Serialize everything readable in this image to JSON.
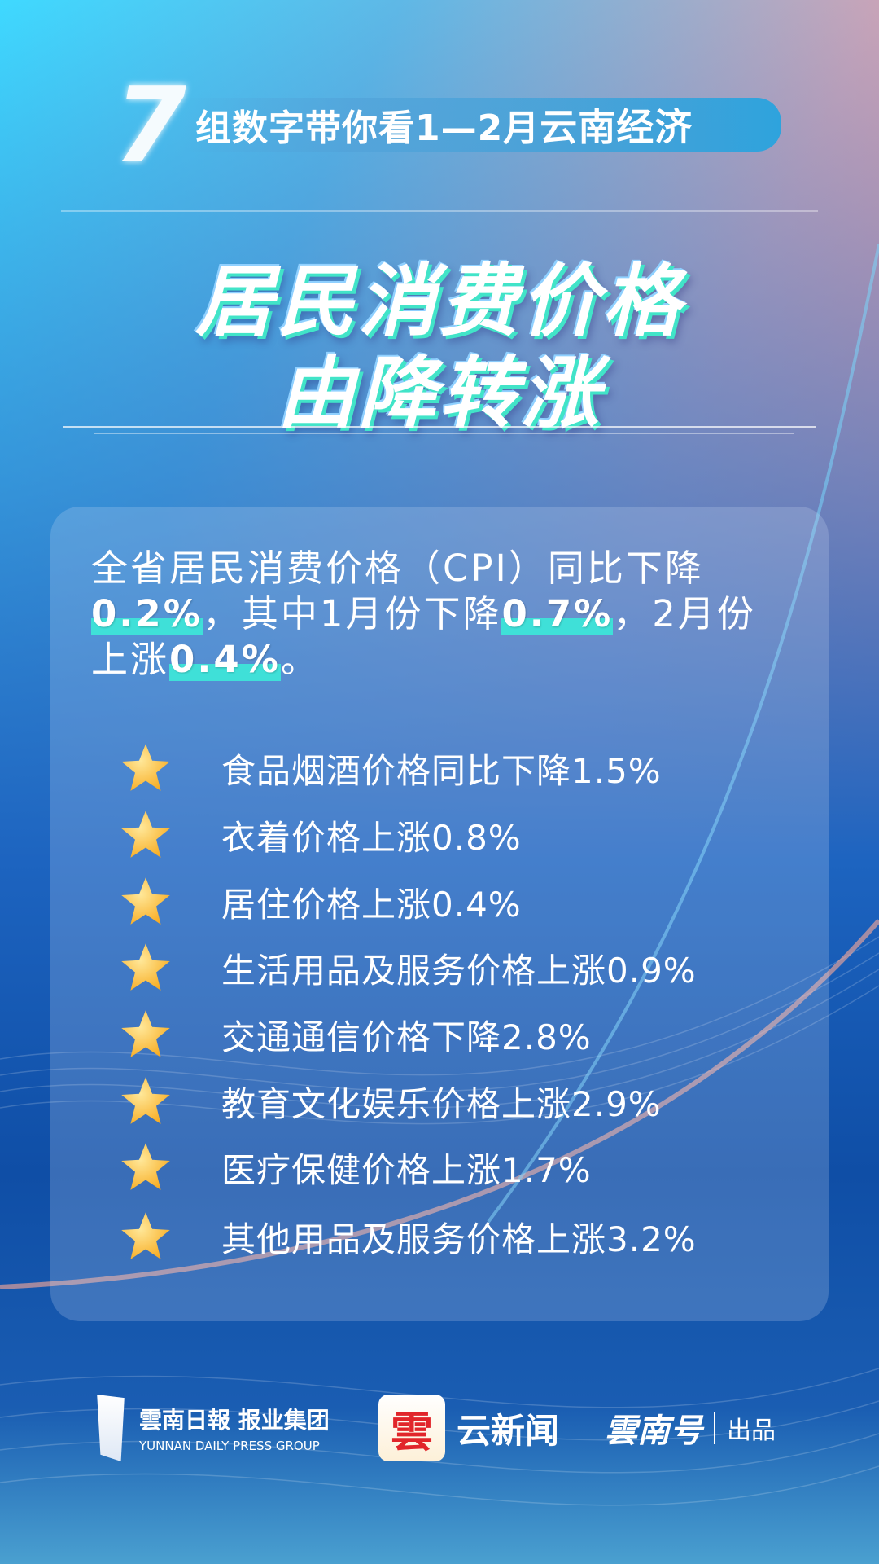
{
  "header": {
    "number": "7",
    "text_regular": "组数字带你看1—2月",
    "text_bold": "云南经济"
  },
  "title": {
    "line1": "居民消费价格",
    "line2": "由降转涨"
  },
  "intro": {
    "part1": "全省居民消费价格（CPI）同比下降",
    "v1": "0.2%",
    "part2": "，其中1月份下降",
    "v2": "0.7%",
    "part3": "，2月份上涨",
    "v3": "0.4%",
    "part4": "。"
  },
  "items": [
    {
      "icon": "star-icon",
      "text": "食品烟酒价格同比下降1.5%"
    },
    {
      "icon": "star-icon",
      "text": "衣着价格上涨0.8%"
    },
    {
      "icon": "star-icon",
      "text": "居住价格上涨0.4%"
    },
    {
      "icon": "star-icon",
      "text": "生活用品及服务价格上涨0.9%"
    },
    {
      "icon": "star-icon",
      "text": "交通通信价格下降2.8%"
    },
    {
      "icon": "star-icon",
      "text": "教育文化娱乐价格上涨2.9%"
    },
    {
      "icon": "star-icon",
      "text": "医疗保健价格上涨1.7%"
    },
    {
      "icon": "star-icon",
      "text": "其他用品及服务价格上涨3.2%"
    }
  ],
  "footer": {
    "group_cn": "雲南日報 报业集团",
    "group_en": "YUNNAN DAILY PRESS GROUP",
    "app_icon_char": "雲",
    "app_name": "云新闻",
    "yunnanhao": "雲南号",
    "produced": "出品"
  },
  "colors": {
    "highlight": "#3fe0d8",
    "star": "#f8b02a",
    "title_shadow": "#41e4c8"
  }
}
